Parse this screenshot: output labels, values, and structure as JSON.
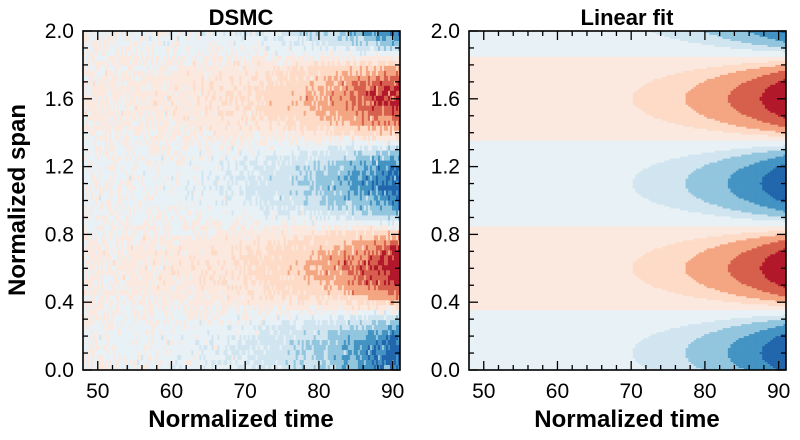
{
  "chart_data": [
    {
      "type": "heatmap",
      "title": "DSMC",
      "xlabel": "Normalized time",
      "ylabel": "Normalized span",
      "xlim": [
        48,
        91
      ],
      "ylim": [
        0.0,
        2.0
      ],
      "xticks": [
        50,
        60,
        70,
        80,
        90
      ],
      "yticks": [
        0.0,
        0.4,
        0.8,
        1.2,
        1.6,
        2.0
      ],
      "ytick_labels": [
        "0.0",
        "0.4",
        "0.8",
        "1.2",
        "1.6",
        "2.0"
      ],
      "field": "noisy simulation: sinusoidal in span (positive/red peaks near span 0.1 and 1.1, negative/blue near 0.6 and 1.6), amplitude growing with time",
      "colormap": "RdBu_r",
      "grid": false
    },
    {
      "type": "heatmap",
      "title": "Linear fit",
      "xlabel": "Normalized time",
      "ylabel": "",
      "xlim": [
        48,
        91
      ],
      "ylim": [
        0.0,
        2.0
      ],
      "xticks": [
        50,
        60,
        70,
        80,
        90
      ],
      "yticks": [
        0.0,
        0.4,
        0.8,
        1.2,
        1.6,
        2.0
      ],
      "ytick_labels": [
        "0.0",
        "0.4",
        "0.8",
        "1.2",
        "1.6",
        "2.0"
      ],
      "field": "filled contours of A*exp(g*(t-91))*sin(2*pi*(s-0.35)) with contour levels",
      "colormap": "RdBu_r",
      "grid": false
    }
  ],
  "colors": {
    "levels": [
      "#2166ac",
      "#4393c3",
      "#92c5de",
      "#d1e5f0",
      "#e8f1f6",
      "#fbe8df",
      "#fddbc7",
      "#f4a582",
      "#d6604d",
      "#b2182b"
    ]
  }
}
